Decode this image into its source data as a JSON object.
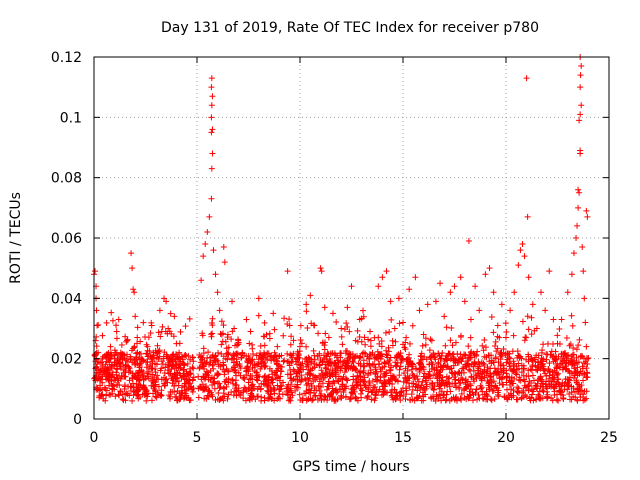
{
  "chart_data": {
    "type": "scatter",
    "title": "Day 131 of 2019, Rate Of TEC Index for receiver p780",
    "xlabel": "GPS time / hours",
    "ylabel": "ROTI / TECUs",
    "xlim": [
      0,
      25
    ],
    "ylim": [
      0,
      0.12
    ],
    "x_ticks": [
      0,
      5,
      10,
      15,
      20,
      25
    ],
    "x_tick_labels": [
      "0",
      "5",
      "10",
      "15",
      "20",
      "25"
    ],
    "y_ticks": [
      0,
      0.02,
      0.04,
      0.06,
      0.08,
      0.1,
      0.12
    ],
    "y_tick_labels": [
      "0",
      "0.02",
      "0.04",
      "0.06",
      "0.08",
      "0.1",
      "0.12"
    ],
    "grid": true,
    "marker": "+",
    "marker_color": "#ff0000",
    "background": "#ffffff",
    "series": [
      {
        "name": "ROTI",
        "points": [
          [
            0.0,
            0.048
          ],
          [
            0.05,
            0.049
          ],
          [
            0.1,
            0.044
          ],
          [
            0.1,
            0.04
          ],
          [
            0.12,
            0.036
          ],
          [
            0.15,
            0.031
          ],
          [
            0.08,
            0.026
          ],
          [
            0.2,
            0.022
          ],
          [
            0.3,
            0.016
          ],
          [
            0.4,
            0.012
          ],
          [
            0.55,
            0.01
          ],
          [
            0.7,
            0.013
          ],
          [
            0.9,
            0.011
          ],
          [
            0.6,
            0.019
          ],
          [
            0.8,
            0.024
          ],
          [
            1.0,
            0.018
          ],
          [
            1.1,
            0.029
          ],
          [
            1.2,
            0.033
          ],
          [
            1.3,
            0.022
          ],
          [
            1.5,
            0.014
          ],
          [
            1.6,
            0.026
          ],
          [
            1.7,
            0.017
          ],
          [
            1.8,
            0.055
          ],
          [
            1.85,
            0.05
          ],
          [
            1.9,
            0.043
          ],
          [
            1.95,
            0.042
          ],
          [
            2.0,
            0.034
          ],
          [
            2.1,
            0.027
          ],
          [
            2.2,
            0.018
          ],
          [
            2.4,
            0.013
          ],
          [
            2.6,
            0.024
          ],
          [
            2.8,
            0.031
          ],
          [
            3.0,
            0.022
          ],
          [
            3.2,
            0.036
          ],
          [
            3.4,
            0.04
          ],
          [
            3.5,
            0.039
          ],
          [
            3.6,
            0.03
          ],
          [
            3.8,
            0.021
          ],
          [
            3.9,
            0.034
          ],
          [
            4.0,
            0.025
          ],
          [
            4.2,
            0.017
          ],
          [
            4.4,
            0.011
          ],
          [
            4.6,
            0.015
          ],
          [
            4.8,
            0.009
          ],
          [
            5.2,
            0.046
          ],
          [
            5.3,
            0.054
          ],
          [
            5.4,
            0.058
          ],
          [
            5.5,
            0.062
          ],
          [
            5.6,
            0.067
          ],
          [
            5.7,
            0.073
          ],
          [
            5.72,
            0.083
          ],
          [
            5.75,
            0.088
          ],
          [
            5.7,
            0.095
          ],
          [
            5.75,
            0.096
          ],
          [
            5.7,
            0.1
          ],
          [
            5.72,
            0.104
          ],
          [
            5.75,
            0.107
          ],
          [
            5.7,
            0.11
          ],
          [
            5.72,
            0.113
          ],
          [
            5.8,
            0.056
          ],
          [
            5.9,
            0.048
          ],
          [
            6.0,
            0.042
          ],
          [
            6.1,
            0.036
          ],
          [
            6.2,
            0.028
          ],
          [
            6.3,
            0.057
          ],
          [
            6.35,
            0.052
          ],
          [
            6.4,
            0.02
          ],
          [
            6.5,
            0.016
          ],
          [
            6.7,
            0.039
          ],
          [
            6.8,
            0.03
          ],
          [
            7.0,
            0.026
          ],
          [
            7.2,
            0.022
          ],
          [
            7.4,
            0.033
          ],
          [
            7.6,
            0.029
          ],
          [
            7.8,
            0.018
          ],
          [
            8.0,
            0.04
          ],
          [
            8.2,
            0.021
          ],
          [
            8.5,
            0.014
          ],
          [
            8.7,
            0.035
          ],
          [
            8.9,
            0.024
          ],
          [
            9.2,
            0.019
          ],
          [
            9.4,
            0.049
          ],
          [
            9.5,
            0.031
          ],
          [
            9.6,
            0.021
          ],
          [
            9.8,
            0.013
          ],
          [
            10.0,
            0.024
          ],
          [
            10.3,
            0.038
          ],
          [
            10.5,
            0.041
          ],
          [
            10.7,
            0.031
          ],
          [
            11.0,
            0.05
          ],
          [
            11.05,
            0.049
          ],
          [
            11.2,
            0.037
          ],
          [
            11.4,
            0.027
          ],
          [
            11.6,
            0.035
          ],
          [
            11.8,
            0.021
          ],
          [
            12.0,
            0.03
          ],
          [
            12.3,
            0.037
          ],
          [
            12.5,
            0.044
          ],
          [
            12.7,
            0.026
          ],
          [
            12.9,
            0.033
          ],
          [
            13.1,
            0.022
          ],
          [
            13.4,
            0.029
          ],
          [
            13.6,
            0.018
          ],
          [
            13.8,
            0.044
          ],
          [
            14.0,
            0.047
          ],
          [
            14.2,
            0.049
          ],
          [
            14.4,
            0.039
          ],
          [
            14.6,
            0.03
          ],
          [
            14.8,
            0.04
          ],
          [
            15.0,
            0.032
          ],
          [
            15.3,
            0.043
          ],
          [
            15.6,
            0.047
          ],
          [
            15.8,
            0.036
          ],
          [
            16.0,
            0.028
          ],
          [
            16.2,
            0.038
          ],
          [
            16.4,
            0.026
          ],
          [
            16.6,
            0.039
          ],
          [
            16.8,
            0.045
          ],
          [
            17.0,
            0.034
          ],
          [
            17.3,
            0.042
          ],
          [
            17.5,
            0.044
          ],
          [
            17.8,
            0.047
          ],
          [
            18.0,
            0.039
          ],
          [
            18.2,
            0.059
          ],
          [
            18.3,
            0.033
          ],
          [
            18.5,
            0.044
          ],
          [
            18.7,
            0.036
          ],
          [
            19.0,
            0.048
          ],
          [
            19.2,
            0.05
          ],
          [
            19.4,
            0.042
          ],
          [
            19.6,
            0.031
          ],
          [
            19.8,
            0.038
          ],
          [
            20.0,
            0.027
          ],
          [
            20.2,
            0.036
          ],
          [
            20.4,
            0.042
          ],
          [
            20.6,
            0.051
          ],
          [
            20.7,
            0.056
          ],
          [
            20.8,
            0.058
          ],
          [
            20.9,
            0.054
          ],
          [
            21.0,
            0.113
          ],
          [
            21.05,
            0.067
          ],
          [
            21.1,
            0.047
          ],
          [
            21.3,
            0.038
          ],
          [
            21.5,
            0.03
          ],
          [
            21.7,
            0.042
          ],
          [
            21.9,
            0.036
          ],
          [
            22.1,
            0.049
          ],
          [
            22.3,
            0.033
          ],
          [
            22.5,
            0.025
          ],
          [
            22.7,
            0.033
          ],
          [
            22.9,
            0.021
          ],
          [
            23.0,
            0.042
          ],
          [
            23.2,
            0.048
          ],
          [
            23.3,
            0.055
          ],
          [
            23.4,
            0.06
          ],
          [
            23.45,
            0.064
          ],
          [
            23.5,
            0.07
          ],
          [
            23.5,
            0.076
          ],
          [
            23.55,
            0.075
          ],
          [
            23.6,
            0.089
          ],
          [
            23.6,
            0.088
          ],
          [
            23.55,
            0.099
          ],
          [
            23.6,
            0.101
          ],
          [
            23.65,
            0.104
          ],
          [
            23.6,
            0.11
          ],
          [
            23.62,
            0.114
          ],
          [
            23.65,
            0.117
          ],
          [
            23.6,
            0.12
          ],
          [
            23.7,
            0.057
          ],
          [
            23.75,
            0.049
          ],
          [
            23.8,
            0.04
          ],
          [
            23.9,
            0.069
          ],
          [
            23.95,
            0.067
          ],
          [
            23.85,
            0.032
          ],
          [
            23.9,
            0.024
          ]
        ]
      }
    ],
    "note": "Dense noise band of many points between ~0.005 and ~0.03 ROTI across all times, with gaps near x=4.9-5.0, 6.6, 9.3."
  }
}
